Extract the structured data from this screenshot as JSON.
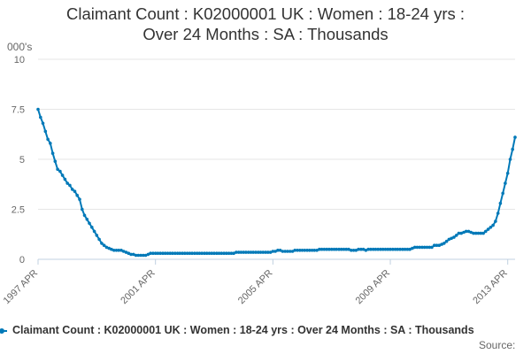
{
  "chart_data": {
    "type": "line",
    "title_lines": [
      "Claimant Count : K02000001 UK : Women : 18-24 yrs :",
      "Over 24 Months : SA : Thousands"
    ],
    "ylabel": "000's",
    "ylim": [
      0,
      10
    ],
    "y_ticks": [
      0,
      2.5,
      5,
      7.5,
      10
    ],
    "y_tick_labels": [
      "0",
      "2.5",
      "5",
      "7.5",
      "10"
    ],
    "x_tick_labels": [
      "1997 APR",
      "2001 APR",
      "2005 APR",
      "2009 APR",
      "2013 APR"
    ],
    "x_tick_positions": [
      0,
      48,
      96,
      144,
      192
    ],
    "x_start": "1997 APR",
    "grid": true,
    "legend_position": "bottom",
    "series": [
      {
        "name": "Claimant Count : K02000001 UK : Women : 18-24 yrs : Over 24 Months : SA : Thousands",
        "color": "#0079b8",
        "values": [
          7.5,
          7.1,
          6.8,
          6.4,
          6.0,
          5.8,
          5.3,
          4.9,
          4.5,
          4.4,
          4.2,
          4.0,
          3.8,
          3.7,
          3.5,
          3.4,
          3.2,
          3.0,
          2.5,
          2.2,
          2.0,
          1.8,
          1.6,
          1.4,
          1.2,
          1.0,
          0.8,
          0.7,
          0.6,
          0.55,
          0.5,
          0.45,
          0.45,
          0.45,
          0.45,
          0.4,
          0.35,
          0.3,
          0.25,
          0.25,
          0.2,
          0.2,
          0.2,
          0.2,
          0.2,
          0.25,
          0.3,
          0.3,
          0.3,
          0.3,
          0.3,
          0.3,
          0.3,
          0.3,
          0.3,
          0.3,
          0.3,
          0.3,
          0.3,
          0.3,
          0.3,
          0.3,
          0.3,
          0.3,
          0.3,
          0.3,
          0.3,
          0.3,
          0.3,
          0.3,
          0.3,
          0.3,
          0.3,
          0.3,
          0.3,
          0.3,
          0.3,
          0.3,
          0.3,
          0.3,
          0.3,
          0.35,
          0.35,
          0.35,
          0.35,
          0.35,
          0.35,
          0.35,
          0.35,
          0.35,
          0.35,
          0.35,
          0.35,
          0.35,
          0.35,
          0.35,
          0.4,
          0.4,
          0.45,
          0.45,
          0.4,
          0.4,
          0.4,
          0.4,
          0.4,
          0.45,
          0.45,
          0.45,
          0.45,
          0.45,
          0.45,
          0.45,
          0.45,
          0.45,
          0.45,
          0.5,
          0.5,
          0.5,
          0.5,
          0.5,
          0.5,
          0.5,
          0.5,
          0.5,
          0.5,
          0.5,
          0.5,
          0.5,
          0.45,
          0.45,
          0.45,
          0.5,
          0.5,
          0.5,
          0.45,
          0.5,
          0.5,
          0.5,
          0.5,
          0.5,
          0.5,
          0.5,
          0.5,
          0.5,
          0.5,
          0.5,
          0.5,
          0.5,
          0.5,
          0.5,
          0.5,
          0.5,
          0.5,
          0.55,
          0.6,
          0.6,
          0.6,
          0.6,
          0.6,
          0.6,
          0.6,
          0.6,
          0.7,
          0.7,
          0.7,
          0.75,
          0.8,
          0.9,
          1.0,
          1.05,
          1.1,
          1.2,
          1.3,
          1.3,
          1.35,
          1.4,
          1.4,
          1.35,
          1.3,
          1.3,
          1.3,
          1.3,
          1.3,
          1.4,
          1.5,
          1.6,
          1.7,
          1.9,
          2.3,
          2.8,
          3.3,
          3.8,
          4.3,
          5.0,
          5.5,
          6.1
        ]
      }
    ]
  },
  "source_label": "Source:"
}
